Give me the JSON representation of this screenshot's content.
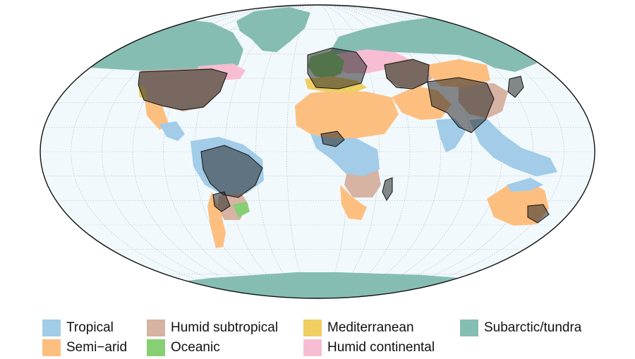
{
  "colors": {
    "ocean": "#f2f9fd",
    "grid": "#b9c2c8",
    "outline": "#111111",
    "tropical": "#a2cce8",
    "semi_arid": "#fdbf80",
    "humid_subtropical": "#d7b3a3",
    "oceanic": "#86cf74",
    "mediterranean": "#efce62",
    "humid_continental": "#f7bdd3",
    "subarctic_tundra": "#86bdb3",
    "overlay": "#2a2a2a"
  },
  "legend": {
    "tropical": "Tropical",
    "semi_arid": "Semi−arid",
    "humid_subtropical": "Humid subtropical",
    "oceanic": "Oceanic",
    "mediterranean": "Mediterranean",
    "humid_continental": "Humid continental",
    "subarctic_tundra": "Subarctic/tundra"
  }
}
